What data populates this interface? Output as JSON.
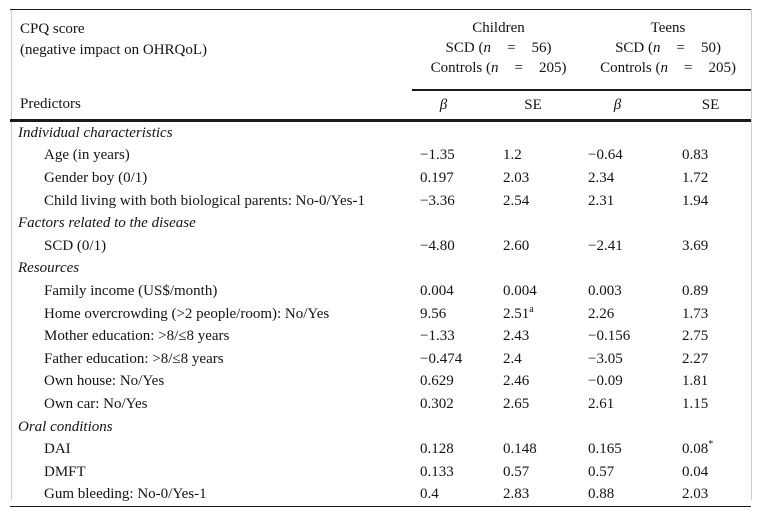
{
  "colors": {
    "background": "#ffffff",
    "text": "#141414",
    "rule": "#1a1a1a",
    "frame_edge": "#cccccc"
  },
  "header": {
    "title_line1": "CPQ score",
    "title_line2": "(negative impact on OHRQoL)",
    "groups": [
      {
        "title": "Children",
        "lines": [
          {
            "prefix": "SCD (",
            "n": "n",
            "eq": "=",
            "value": "56)"
          },
          {
            "prefix": "Controls (",
            "n": "n",
            "eq": "=",
            "value": "205)"
          }
        ]
      },
      {
        "title": "Teens",
        "lines": [
          {
            "prefix": "SCD (",
            "n": "n",
            "eq": "=",
            "value": "50)"
          },
          {
            "prefix": "Controls (",
            "n": "n",
            "eq": "=",
            "value": "205)"
          }
        ]
      }
    ],
    "predictors_label": "Predictors",
    "col_headers": [
      "β",
      "SE",
      "β",
      "SE"
    ]
  },
  "rows": [
    {
      "type": "section",
      "label": "Individual characteristics"
    },
    {
      "type": "data",
      "label": "Age (in years)",
      "values": [
        "−1.35",
        "1.2",
        "−0.64",
        "0.83"
      ]
    },
    {
      "type": "data",
      "label": "Gender boy (0/1)",
      "values": [
        "0.197",
        "2.03",
        "2.34",
        "1.72"
      ]
    },
    {
      "type": "data",
      "label": "Child living with both biological parents: No-0/Yes-1",
      "values": [
        "−3.36",
        "2.54",
        "2.31",
        "1.94"
      ]
    },
    {
      "type": "section",
      "label": "Factors related to the disease"
    },
    {
      "type": "data",
      "label": "SCD (0/1)",
      "values": [
        "−4.80",
        "2.60",
        "−2.41",
        "3.69"
      ]
    },
    {
      "type": "section",
      "label": "Resources"
    },
    {
      "type": "data",
      "label": "Family income (US$/month)",
      "values": [
        "0.004",
        "0.004",
        "0.003",
        "0.89"
      ]
    },
    {
      "type": "data",
      "label": "Home overcrowding (>2 people/room): No/Yes",
      "values": [
        "9.56",
        {
          "v": "2.51",
          "sup": "a"
        },
        "2.26",
        "1.73"
      ]
    },
    {
      "type": "data",
      "label": "Mother education: >8/≤8 years",
      "values": [
        "−1.33",
        "2.43",
        "−0.156",
        "2.75"
      ]
    },
    {
      "type": "data",
      "label": "Father education: >8/≤8 years",
      "values": [
        "−0.474",
        "2.4",
        "−3.05",
        "2.27"
      ]
    },
    {
      "type": "data",
      "label": "Own house: No/Yes",
      "values": [
        "0.629",
        "2.46",
        "−0.09",
        "1.81"
      ]
    },
    {
      "type": "data",
      "label": "Own car: No/Yes",
      "values": [
        "0.302",
        "2.65",
        "2.61",
        "1.15"
      ]
    },
    {
      "type": "section",
      "label": "Oral conditions"
    },
    {
      "type": "data",
      "label": "DAI",
      "values": [
        "0.128",
        "0.148",
        "0.165",
        {
          "v": "0.08",
          "sup": "*"
        }
      ]
    },
    {
      "type": "data",
      "label": "DMFT",
      "values": [
        "0.133",
        "0.57",
        "0.57",
        "0.04"
      ]
    },
    {
      "type": "data",
      "label": "Gum bleeding: No-0/Yes-1",
      "values": [
        "0.4",
        "2.83",
        "0.88",
        "2.03"
      ]
    }
  ]
}
